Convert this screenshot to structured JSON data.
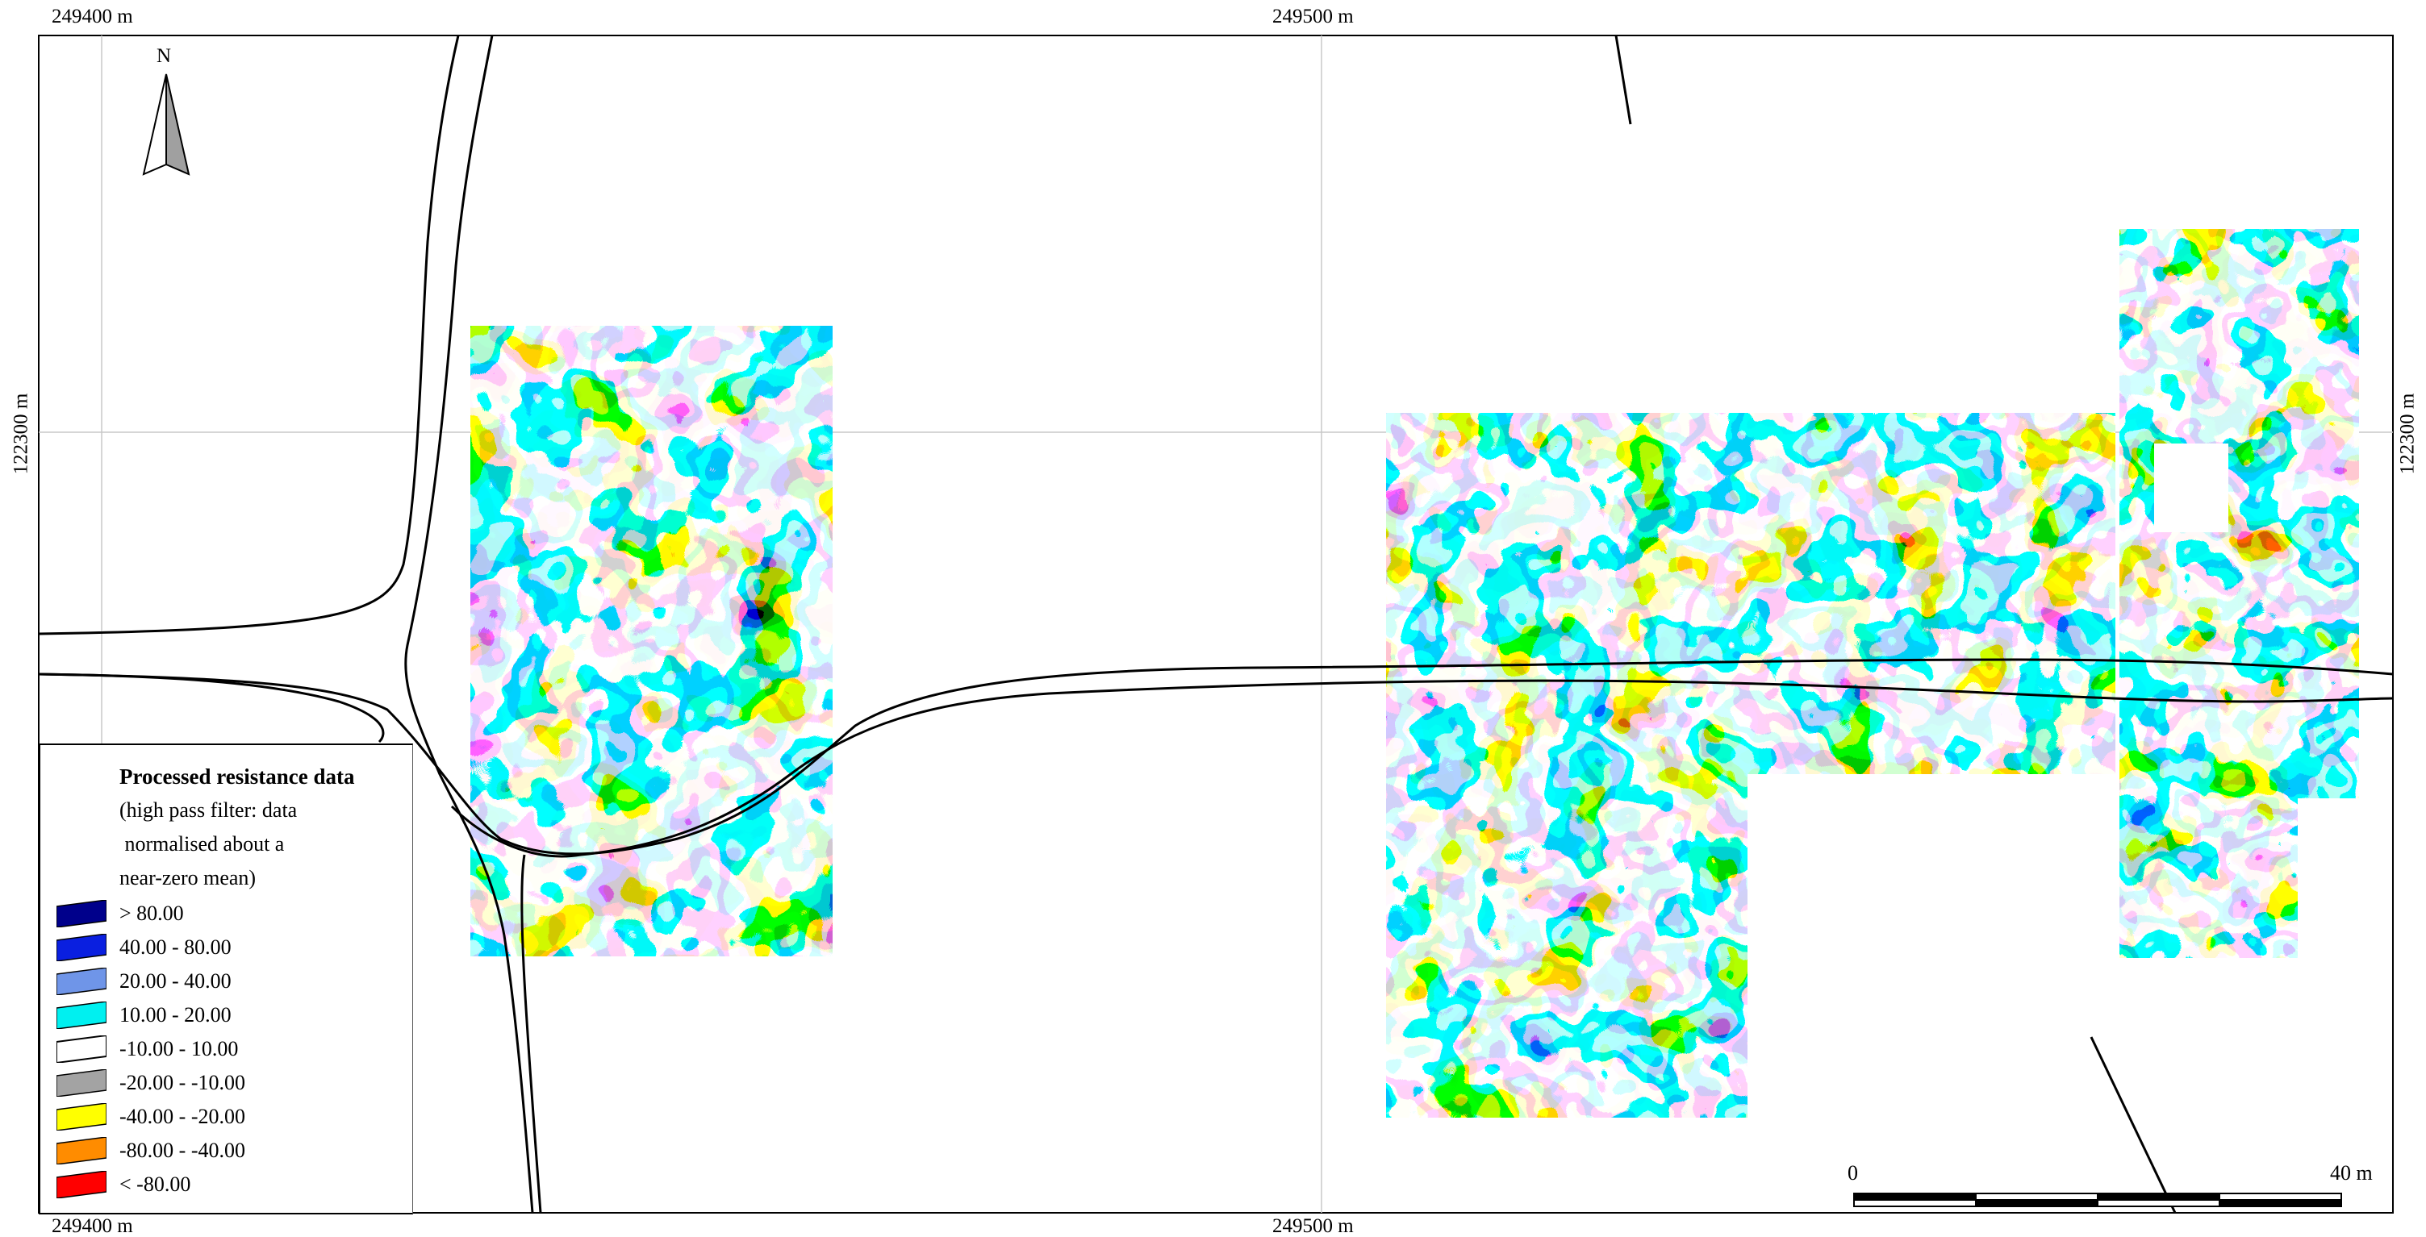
{
  "coords": {
    "top_left": "249400 m",
    "top_mid": "249500 m",
    "bottom_left": "249400 m",
    "bottom_mid": "249500 m",
    "left_mid": "122300 m",
    "right_mid": "122300 m"
  },
  "north_label": "N",
  "legend": {
    "title": "Processed resistance data",
    "subtitle_lines": [
      "(high pass filter: data",
      " normalised about a",
      "near-zero mean)"
    ],
    "classes": [
      {
        "label": "> 80.00",
        "color": "#00008b"
      },
      {
        "label": "40.00 - 80.00",
        "color": "#0a1fe0"
      },
      {
        "label": "20.00 - 40.00",
        "color": "#6f95e8"
      },
      {
        "label": "10.00 - 20.00",
        "color": "#00f0f0"
      },
      {
        "label": "-10.00 - 10.00",
        "color": "#ffffff"
      },
      {
        "label": "-20.00 - -10.00",
        "color": "#a3a3a3"
      },
      {
        "label": "-40.00 - -20.00",
        "color": "#ffff00"
      },
      {
        "label": "-80.00 - -40.00",
        "color": "#ff8c00"
      },
      {
        "label": "< -80.00",
        "color": "#ff0000"
      }
    ]
  },
  "scale_bar": {
    "start_label": "0",
    "end_label": "40 m"
  }
}
